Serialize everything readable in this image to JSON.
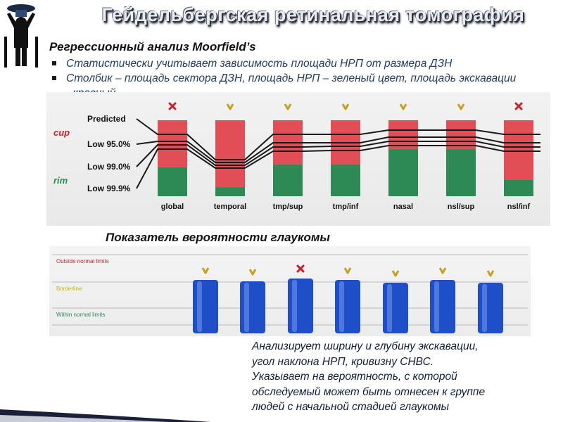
{
  "header": {
    "title": "Гейдельбергская ретинальная томография"
  },
  "subtitle": "Регрессионный  анализ Moorfield’s",
  "bullets": [
    "Статистически учитывает зависимость площади НРП от размера ДЗН",
    "Столбик – площадь сектора ДЗН, площадь НРП – зеленый цвет, площадь экскавации - красный"
  ],
  "chart_data": {
    "type": "bar",
    "categories": [
      "global",
      "temporal",
      "tmp/sup",
      "tmp/inf",
      "nasal",
      "nsl/sup",
      "nsl/inf"
    ],
    "series": [
      {
        "name": "cup",
        "values": [
          0.62,
          0.88,
          0.58,
          0.58,
          0.38,
          0.38,
          0.78
        ]
      },
      {
        "name": "rim",
        "values": [
          0.38,
          0.12,
          0.42,
          0.42,
          0.62,
          0.62,
          0.22
        ]
      }
    ],
    "level_labels": [
      "Predicted",
      "Low 95.0%",
      "Low 99.0%",
      "Low 99.9%"
    ],
    "side_labels": [
      "cup",
      "rim"
    ],
    "status_marks": [
      "fail",
      "pass",
      "pass",
      "pass",
      "pass",
      "pass",
      "fail"
    ],
    "colors": {
      "cup": "#e24e55",
      "rim": "#2e8a55",
      "pass": "#c8a020",
      "fail": "#c8232c"
    }
  },
  "probability_section": {
    "heading": "Показатель вероятности  глаукомы",
    "zones": [
      "Outside normal limits",
      "Borderline",
      "Within normal limits"
    ],
    "bar_marks": [
      "pass",
      "pass",
      "fail",
      "pass",
      "pass",
      "pass",
      "pass"
    ],
    "bar_color": "#1f4fc8"
  },
  "description": [
    "Анализирует ширину и глубину экскавации,",
    "угол наклона НРП, кривизну СНВС.",
    "Указывает на вероятность, с которой",
    "обследуемый может быть отнесен к группе",
    "людей с начальной стадией глаукомы"
  ]
}
